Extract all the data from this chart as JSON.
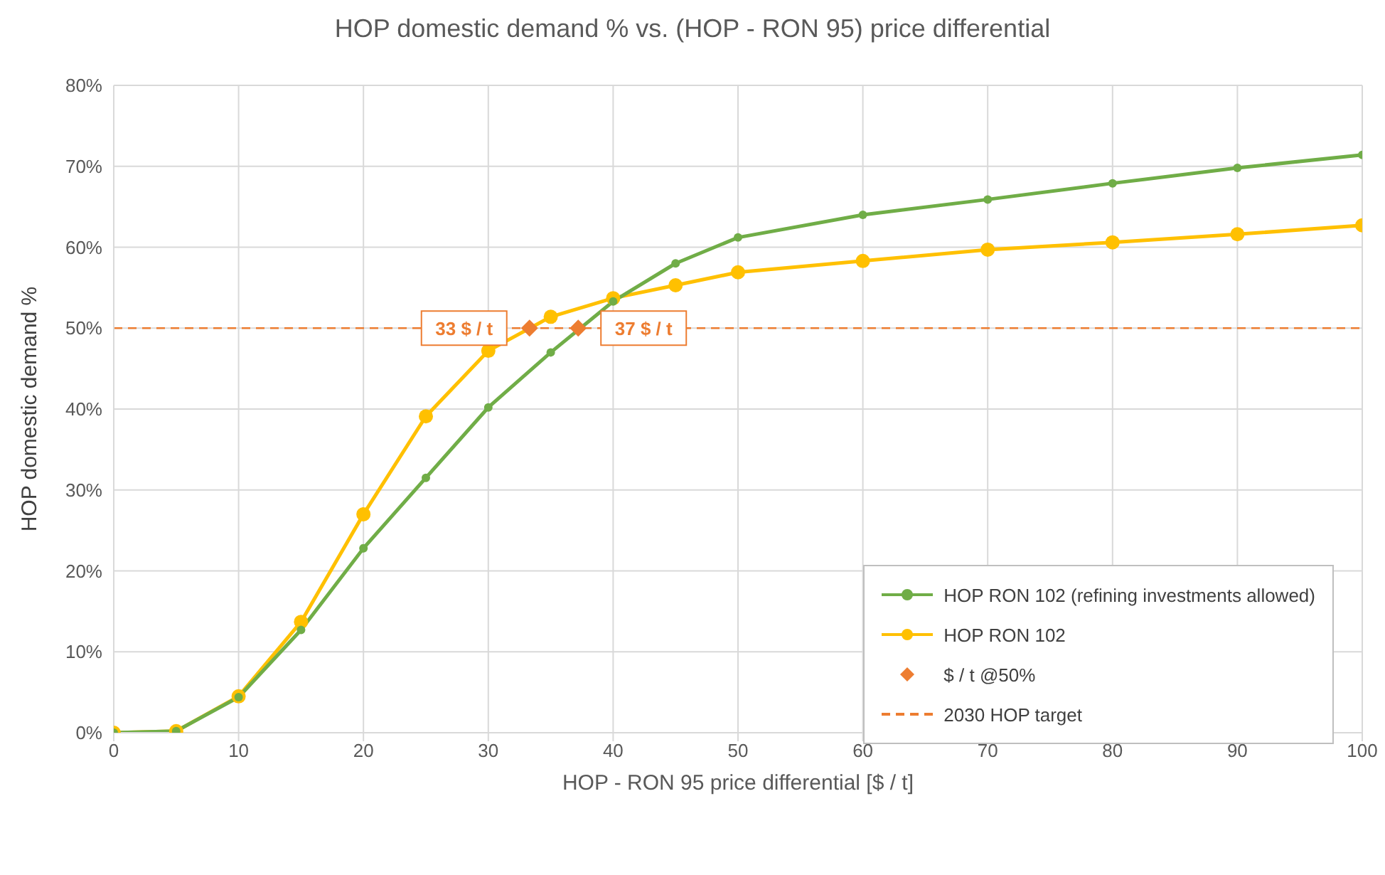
{
  "chart_data": {
    "type": "line",
    "title": "HOP domestic demand % vs. (HOP - RON 95) price differential",
    "xlabel": "HOP - RON 95 price differential [$ / t]",
    "ylabel": "HOP domestic demand %",
    "x": [
      0,
      5,
      10,
      15,
      20,
      25,
      30,
      35,
      40,
      45,
      50,
      60,
      70,
      80,
      90,
      100
    ],
    "series": [
      {
        "name": "HOP RON 102 (refining investments allowed)",
        "color": "#70ad47",
        "values": [
          0,
          0.2,
          4.4,
          12.7,
          22.8,
          31.5,
          40.2,
          47,
          53.3,
          58,
          61.2,
          64,
          65.9,
          67.9,
          69.8,
          71.4
        ]
      },
      {
        "name": "HOP RON 102",
        "color": "#ffc000",
        "values": [
          0,
          0.2,
          4.5,
          13.7,
          27,
          39.1,
          47.2,
          51.4,
          53.7,
          55.3,
          56.9,
          58.3,
          59.7,
          60.6,
          61.6,
          62.7
        ]
      },
      {
        "name": "$ / t @50%",
        "type": "scatter",
        "marker": "diamond",
        "color": "#ed7d31",
        "x": [
          33.3,
          37.2
        ],
        "values": [
          50,
          50
        ]
      }
    ],
    "ref_lines": [
      {
        "axis": "y",
        "value": 50,
        "label": "2030 HOP target",
        "color": "#ed7d31",
        "line_style": "dashed"
      }
    ],
    "annotations": [
      {
        "text": "33 $ / t",
        "x": 33.3,
        "y": 50
      },
      {
        "text": "37 $ / t",
        "x": 37.2,
        "y": 50
      }
    ],
    "xlim": [
      0,
      100
    ],
    "xticks": [
      0,
      10,
      20,
      30,
      40,
      50,
      60,
      70,
      80,
      90,
      100
    ],
    "ylim": [
      0,
      80
    ],
    "yticks": [
      {
        "value": 0,
        "label": "0%"
      },
      {
        "value": 10,
        "label": "10%"
      },
      {
        "value": 20,
        "label": "20%"
      },
      {
        "value": 30,
        "label": "30%"
      },
      {
        "value": 40,
        "label": "40%"
      },
      {
        "value": 50,
        "label": "50%"
      },
      {
        "value": 60,
        "label": "60%"
      },
      {
        "value": 70,
        "label": "70%"
      },
      {
        "value": 80,
        "label": "80%"
      }
    ],
    "grid": true,
    "legend": "bottom right",
    "marker": "circle",
    "line_style": "solid"
  }
}
